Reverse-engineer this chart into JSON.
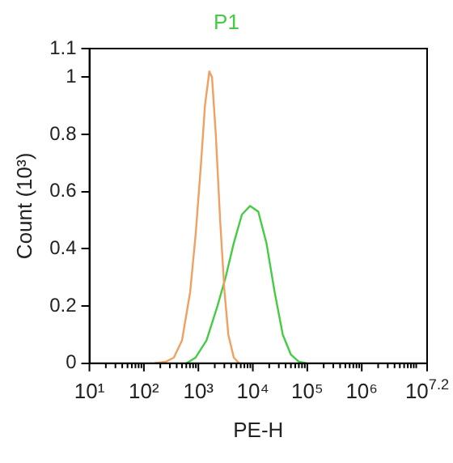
{
  "chart_data": {
    "type": "line",
    "xlabel": "PE-H",
    "ylabel": "Count (10³)",
    "log": "x",
    "xlim": [
      10,
      15850000
    ],
    "xticks": [
      {
        "value": 10,
        "label": "10¹"
      },
      {
        "value": 20,
        "label": null
      },
      {
        "value": 30,
        "label": null
      },
      {
        "value": 40,
        "label": null
      },
      {
        "value": 50,
        "label": null
      },
      {
        "value": 60,
        "label": null
      },
      {
        "value": 70,
        "label": null
      },
      {
        "value": 80,
        "label": null
      },
      {
        "value": 90,
        "label": null
      },
      {
        "value": 100,
        "label": "10²"
      },
      {
        "value": 200,
        "label": null
      },
      {
        "value": 300,
        "label": null
      },
      {
        "value": 400,
        "label": null
      },
      {
        "value": 500,
        "label": null
      },
      {
        "value": 600,
        "label": null
      },
      {
        "value": 700,
        "label": null
      },
      {
        "value": 800,
        "label": null
      },
      {
        "value": 900,
        "label": null
      },
      {
        "value": 1000,
        "label": "10³"
      },
      {
        "value": 2000,
        "label": null
      },
      {
        "value": 3000,
        "label": null
      },
      {
        "value": 4000,
        "label": null
      },
      {
        "value": 5000,
        "label": null
      },
      {
        "value": 6000,
        "label": null
      },
      {
        "value": 7000,
        "label": null
      },
      {
        "value": 8000,
        "label": null
      },
      {
        "value": 9000,
        "label": null
      },
      {
        "value": 10000,
        "label": "10⁴"
      },
      {
        "value": 20000,
        "label": null
      },
      {
        "value": 30000,
        "label": null
      },
      {
        "value": 40000,
        "label": null
      },
      {
        "value": 50000,
        "label": null
      },
      {
        "value": 60000,
        "label": null
      },
      {
        "value": 70000,
        "label": null
      },
      {
        "value": 80000,
        "label": null
      },
      {
        "value": 90000,
        "label": null
      },
      {
        "value": 100000,
        "label": "10⁵"
      },
      {
        "value": 200000,
        "label": null
      },
      {
        "value": 300000,
        "label": null
      },
      {
        "value": 400000,
        "label": null
      },
      {
        "value": 500000,
        "label": null
      },
      {
        "value": 600000,
        "label": null
      },
      {
        "value": 700000,
        "label": null
      },
      {
        "value": 800000,
        "label": null
      },
      {
        "value": 900000,
        "label": null
      },
      {
        "value": 1000000,
        "label": "10⁶"
      },
      {
        "value": 2000000,
        "label": null
      },
      {
        "value": 3000000,
        "label": null
      },
      {
        "value": 4000000,
        "label": null
      },
      {
        "value": 5000000,
        "label": null
      },
      {
        "value": 6000000,
        "label": null
      },
      {
        "value": 7000000,
        "label": null
      },
      {
        "value": 8000000,
        "label": null
      },
      {
        "value": 9000000,
        "label": null
      },
      {
        "value": 10000000,
        "label": null
      },
      {
        "value": 15850000,
        "label": "10$^{7.2}$"
      }
    ],
    "ylim": [
      0,
      1.1
    ],
    "yticks": [
      0,
      0.2,
      0.4,
      0.6,
      0.8,
      1,
      1.1
    ],
    "grid": false,
    "legend": false,
    "marker": "none",
    "line_style": "solid",
    "series": [
      {
        "color": "#f0a060",
        "x": [
          158,
          251,
          355,
          501,
          708,
          891,
          1120,
          1320,
          1590,
          1780,
          2090,
          2510,
          3020,
          3550,
          4470,
          5620
        ],
        "values": [
          0,
          0.005,
          0.02,
          0.08,
          0.25,
          0.45,
          0.7,
          0.9,
          1.02,
          1.0,
          0.8,
          0.5,
          0.25,
          0.1,
          0.02,
          0
        ]
      },
      {
        "name": "P1",
        "color": "#44cc44",
        "x": [
          603,
          891,
          1410,
          2240,
          3160,
          4470,
          6310,
          8910,
          12600,
          17800,
          25100,
          35500,
          50100,
          70800,
          95500
        ],
        "values": [
          0,
          0.02,
          0.08,
          0.2,
          0.3,
          0.42,
          0.52,
          0.55,
          0.53,
          0.42,
          0.25,
          0.1,
          0.03,
          0.005,
          0
        ]
      }
    ]
  }
}
